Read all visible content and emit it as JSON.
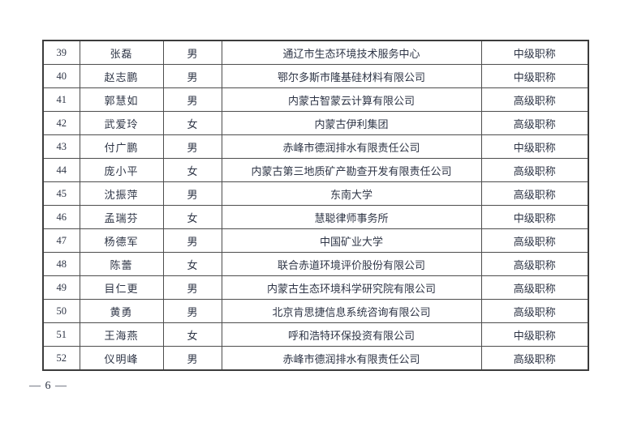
{
  "colors": {
    "background": "#ffffff",
    "text": "#2e3546",
    "table_border": "#4d4d4d",
    "table_outer_border": "#3c3c3c"
  },
  "footer": {
    "page_number": "— 6 —"
  },
  "table": {
    "rows": [
      {
        "no": "39",
        "name": "张磊",
        "gender": "男",
        "organization": "通辽市生态环境技术服务中心",
        "title": "中级职称"
      },
      {
        "no": "40",
        "name": "赵志鹏",
        "gender": "男",
        "organization": "鄂尔多斯市隆基硅材料有限公司",
        "title": "中级职称"
      },
      {
        "no": "41",
        "name": "郭慧如",
        "gender": "男",
        "organization": "内蒙古智蒙云计算有限公司",
        "title": "高级职称"
      },
      {
        "no": "42",
        "name": "武爱玲",
        "gender": "女",
        "organization": "内蒙古伊利集团",
        "title": "高级职称"
      },
      {
        "no": "43",
        "name": "付广鹏",
        "gender": "男",
        "organization": "赤峰市德润排水有限责任公司",
        "title": "中级职称"
      },
      {
        "no": "44",
        "name": "庞小平",
        "gender": "女",
        "organization": "内蒙古第三地质矿产勘查开发有限责任公司",
        "title": "高级职称"
      },
      {
        "no": "45",
        "name": "沈振萍",
        "gender": "男",
        "organization": "东南大学",
        "title": "高级职称"
      },
      {
        "no": "46",
        "name": "孟瑞芬",
        "gender": "女",
        "organization": "慧聪律师事务所",
        "title": "中级职称"
      },
      {
        "no": "47",
        "name": "杨德军",
        "gender": "男",
        "organization": "中国矿业大学",
        "title": "高级职称"
      },
      {
        "no": "48",
        "name": "陈蕾",
        "gender": "女",
        "organization": "联合赤道环境评价股份有限公司",
        "title": "高级职称"
      },
      {
        "no": "49",
        "name": "目仁更",
        "gender": "男",
        "organization": "内蒙古生态环境科学研究院有限公司",
        "title": "高级职称"
      },
      {
        "no": "50",
        "name": "黄勇",
        "gender": "男",
        "organization": "北京肯思捷信息系统咨询有限公司",
        "title": "高级职称"
      },
      {
        "no": "51",
        "name": "王海燕",
        "gender": "女",
        "organization": "呼和浩特环保投资有限公司",
        "title": "中级职称"
      },
      {
        "no": "52",
        "name": "仪明峰",
        "gender": "男",
        "organization": "赤峰市德润排水有限责任公司",
        "title": "高级职称"
      }
    ]
  }
}
